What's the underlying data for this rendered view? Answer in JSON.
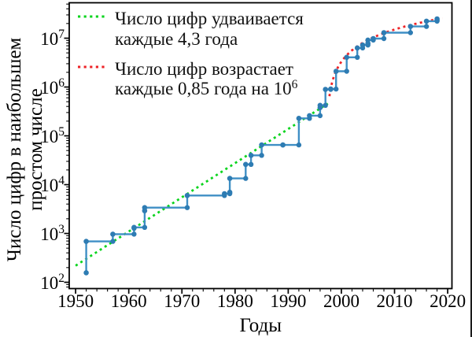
{
  "chart_data": {
    "type": "line",
    "title": "",
    "xlabel": "Годы",
    "ylabel_lines": [
      "Число цифр в наибольшем",
      "простом числе"
    ],
    "yscale": "log",
    "grid": false,
    "legend_position": "upper-left",
    "xlim": [
      1948.8,
      2020.8
    ],
    "ylim_log": [
      1.871,
      7.726
    ],
    "x_ticks": [
      1950,
      1960,
      1970,
      1980,
      1990,
      2000,
      2010,
      2020
    ],
    "x_minor_step": 2,
    "y_tick_exponents": [
      2,
      3,
      4,
      5,
      6,
      7
    ],
    "y_tick_base": "10",
    "colors": {
      "step_line": "#3f8fc5",
      "marker": "#2e7cb3",
      "doubling_trend": "#0ad41e",
      "linear_trend": "#ee2327",
      "axis": "#000000",
      "text": "#111111"
    },
    "series": [
      {
        "name": "largest-prime-digit-records",
        "type": "step-post",
        "color": "#3f8fc5",
        "marker_color": "#2e7cb3",
        "points": [
          [
            1952,
            157
          ],
          [
            1952,
            687
          ],
          [
            1957,
            969
          ],
          [
            1961,
            1281
          ],
          [
            1961,
            1332
          ],
          [
            1963,
            2917
          ],
          [
            1963,
            3376
          ],
          [
            1971,
            6002
          ],
          [
            1978,
            6533
          ],
          [
            1979,
            6987
          ],
          [
            1979,
            13395
          ],
          [
            1982,
            25962
          ],
          [
            1983,
            39751
          ],
          [
            1985,
            65050
          ],
          [
            1989,
            65087
          ],
          [
            1992,
            227832
          ],
          [
            1994,
            258716
          ],
          [
            1996,
            378632
          ],
          [
            1996,
            420921
          ],
          [
            1997,
            895932
          ],
          [
            1998,
            909526
          ],
          [
            1999,
            2098960
          ],
          [
            2001,
            4053946
          ],
          [
            2003,
            6320430
          ],
          [
            2004,
            7235733
          ],
          [
            2005,
            7816230
          ],
          [
            2005,
            9152052
          ],
          [
            2006,
            9808358
          ],
          [
            2008,
            12978189
          ],
          [
            2013,
            17425170
          ],
          [
            2016,
            22338618
          ],
          [
            2018,
            23249425
          ],
          [
            2018,
            24862048
          ]
        ]
      },
      {
        "name": "doubling-trend",
        "type": "exponential-trend",
        "style": "dotted",
        "color": "#0ad41e",
        "label_line1": "Число цифр удваивается",
        "label_line2": "каждые 4,3 года",
        "label_line2_sup": "",
        "doubling_years": 4.3,
        "anchor_year": 1996.9,
        "anchor_value": 420000,
        "x_start": 1950.0,
        "x_end": 1997.45
      },
      {
        "name": "linear-growth-trend",
        "type": "linear-trend",
        "style": "dotted",
        "color": "#ee2327",
        "label_line1": "Число цифр возрастает",
        "label_line2": "каждые 0,85 года на 10",
        "label_line2_sup": "6",
        "increment": 1000000,
        "years_per_increment": 0.85,
        "zero_year": 1997.2,
        "x_start": 1997.75,
        "x_end": 2019.0
      }
    ]
  }
}
